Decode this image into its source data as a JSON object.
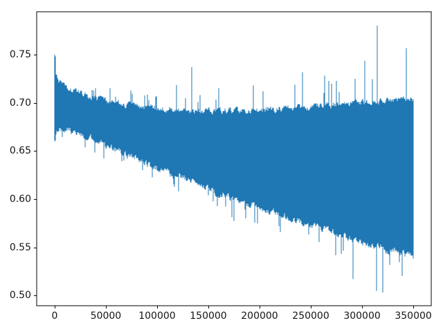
{
  "figure": {
    "background_color": "#ffffff",
    "frame_color": "#000000",
    "tick_label_color": "#141414"
  },
  "chart_data": {
    "type": "line",
    "title": "",
    "xlabel": "",
    "ylabel": "",
    "grid": false,
    "legend": null,
    "line_color": "#1f77b4",
    "x_ticks": [
      0,
      50000,
      100000,
      150000,
      200000,
      250000,
      300000,
      350000
    ],
    "y_ticks": [
      0.5,
      0.55,
      0.6,
      0.65,
      0.7,
      0.75
    ],
    "y_tick_decimals": 2,
    "xlim": [
      -17500,
      367500
    ],
    "ylim": [
      0.4895,
      0.7945
    ],
    "x_range": [
      0,
      350000
    ],
    "y_observed_min": 0.503,
    "y_observed_max": 0.78,
    "description": "Dense high-frequency noisy series of ~350000 points. Upper edge of the band stays near 0.70 (spikes growing from ~0.75 at the start to ~0.78 near x=315000). Lower edge declines steadily from ~0.66 at x=0 to ~0.53 at x=350000, with dips to ~0.503 near x=314000-320000.",
    "series": [
      {
        "name": "series-0",
        "envelope": {
          "x": [
            0,
            4000,
            10000,
            20000,
            35000,
            50000,
            75000,
            100000,
            125000,
            150000,
            175000,
            200000,
            225000,
            250000,
            275000,
            300000,
            325000,
            350000
          ],
          "high": [
            0.74,
            0.728,
            0.722,
            0.718,
            0.712,
            0.708,
            0.703,
            0.7,
            0.698,
            0.697,
            0.698,
            0.699,
            0.7,
            0.702,
            0.704,
            0.706,
            0.708,
            0.71
          ],
          "low": [
            0.66,
            0.667,
            0.666,
            0.662,
            0.656,
            0.649,
            0.637,
            0.625,
            0.614,
            0.604,
            0.594,
            0.585,
            0.576,
            0.567,
            0.558,
            0.549,
            0.541,
            0.533
          ],
          "spike_up": [
            0.01,
            0.012,
            0.012,
            0.012,
            0.012,
            0.014,
            0.016,
            0.02,
            0.026,
            0.03,
            0.032,
            0.034,
            0.038,
            0.04,
            0.042,
            0.044,
            0.048,
            0.045
          ],
          "spike_down": [
            0.004,
            0.005,
            0.006,
            0.007,
            0.008,
            0.009,
            0.012,
            0.014,
            0.016,
            0.018,
            0.02,
            0.022,
            0.025,
            0.026,
            0.028,
            0.03,
            0.032,
            0.03
          ]
        },
        "notable_points": [
          {
            "x": 1000,
            "y": 0.748,
            "kind": "start-spike"
          },
          {
            "x": 134000,
            "y": 0.737,
            "kind": "up-spike"
          },
          {
            "x": 315000,
            "y": 0.78,
            "kind": "global-max"
          },
          {
            "x": 314000,
            "y": 0.505,
            "kind": "down-spike"
          },
          {
            "x": 320000,
            "y": 0.503,
            "kind": "global-min"
          },
          {
            "x": 291000,
            "y": 0.517,
            "kind": "down-spike"
          },
          {
            "x": 343000,
            "y": 0.757,
            "kind": "up-spike"
          }
        ]
      }
    ],
    "noise_seed": 1337
  }
}
